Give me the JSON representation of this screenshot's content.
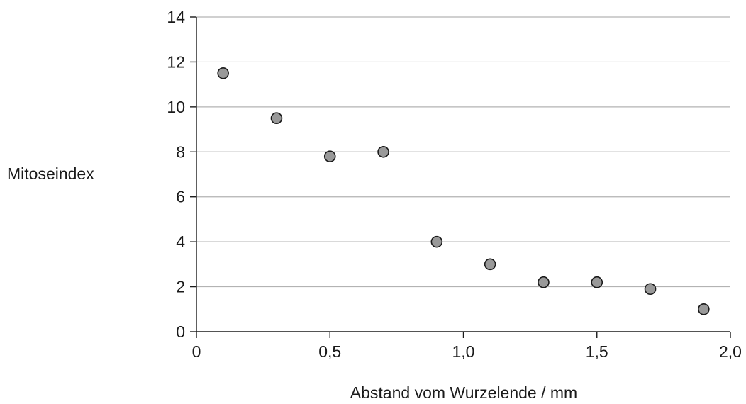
{
  "chart_data": {
    "type": "scatter",
    "title": "",
    "xlabel": "Abstand vom Wurzelende / mm",
    "ylabel": "Mitoseindex",
    "xlim": [
      0,
      2.0
    ],
    "ylim": [
      0,
      14
    ],
    "x_ticks": [
      0,
      0.5,
      1.0,
      1.5,
      2.0
    ],
    "x_tick_labels": [
      "0",
      "0,5",
      "1,0",
      "1,5",
      "2,0"
    ],
    "y_ticks": [
      0,
      2,
      4,
      6,
      8,
      10,
      12,
      14
    ],
    "y_tick_labels": [
      "0",
      "2",
      "4",
      "6",
      "8",
      "10",
      "12",
      "14"
    ],
    "grid": "horizontal",
    "legend": "none",
    "marker_color": "#999999",
    "series": [
      {
        "points": [
          {
            "x": 0.1,
            "y": 11.5
          },
          {
            "x": 0.3,
            "y": 9.5
          },
          {
            "x": 0.5,
            "y": 7.8
          },
          {
            "x": 0.7,
            "y": 8.0
          },
          {
            "x": 0.9,
            "y": 4.0
          },
          {
            "x": 1.1,
            "y": 3.0
          },
          {
            "x": 1.3,
            "y": 2.2
          },
          {
            "x": 1.5,
            "y": 2.2
          },
          {
            "x": 1.7,
            "y": 1.9
          },
          {
            "x": 1.9,
            "y": 1.0
          }
        ]
      }
    ]
  }
}
